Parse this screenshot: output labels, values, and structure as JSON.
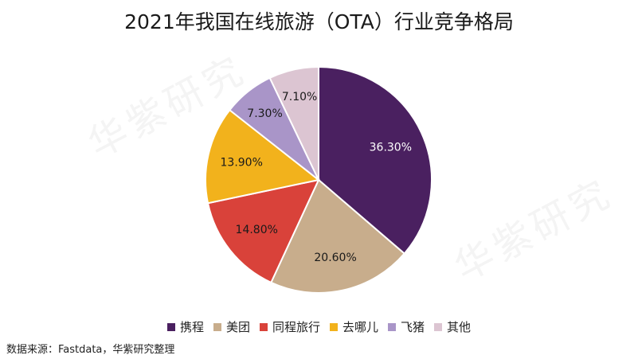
{
  "title": "2021年我国在线旅游（OTA）行业竞争格局",
  "watermark": "华紫研究",
  "source": "数据来源：Fastdata，华紫研究整理",
  "chart_data": {
    "type": "pie",
    "title": "2021年我国在线旅游（OTA）行业竞争格局",
    "legend_position": "bottom",
    "slices": [
      {
        "label": "携程",
        "value": 36.3,
        "display": "36.30%",
        "color": "#4a2060"
      },
      {
        "label": "美团",
        "value": 20.6,
        "display": "20.60%",
        "color": "#c8ad8c"
      },
      {
        "label": "同程旅行",
        "value": 14.8,
        "display": "14.80%",
        "color": "#d9423a"
      },
      {
        "label": "去哪儿",
        "value": 13.9,
        "display": "13.90%",
        "color": "#f2b21c"
      },
      {
        "label": "飞猪",
        "value": 7.3,
        "display": "7.30%",
        "color": "#a995c8"
      },
      {
        "label": "其他",
        "value": 7.1,
        "display": "7.10%",
        "color": "#dcc5d2"
      }
    ]
  }
}
